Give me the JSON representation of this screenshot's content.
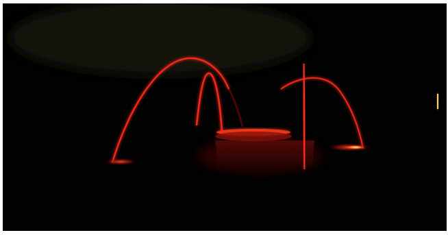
{
  "scene": {
    "subject": "red-lit-fountain-at-night",
    "colors": {
      "page_border": "#ffffff",
      "background": "#020202",
      "haze": "#14120a",
      "jet": "#ff2a1a",
      "jet_glow": "#ff0000",
      "pool_light": "#ff3b1f",
      "bright_spot": "#ffd36a",
      "basin": "#3a0604"
    }
  }
}
